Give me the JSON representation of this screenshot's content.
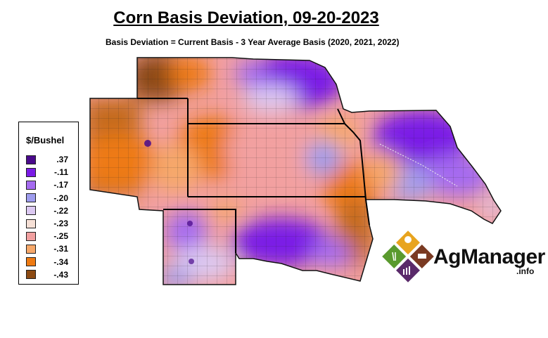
{
  "title": "Corn Basis Deviation, 09-20-2023",
  "subtitle": "Basis Deviation = Current Basis - 3 Year Average Basis (2020, 2021, 2022)",
  "legend": {
    "title": "$/Bushel",
    "items": [
      {
        "label": ".37",
        "color": "#4a0a8c"
      },
      {
        "label": "-.11",
        "color": "#7a1ae6"
      },
      {
        "label": "-.17",
        "color": "#a56bf0"
      },
      {
        "label": "-.20",
        "color": "#9e9cee"
      },
      {
        "label": "-.22",
        "color": "#dcc9f2"
      },
      {
        "label": "-.23",
        "color": "#f6e0d6"
      },
      {
        "label": "-.25",
        "color": "#f2a0a0"
      },
      {
        "label": "-.31",
        "color": "#f6a86a"
      },
      {
        "label": "-.34",
        "color": "#ee7a12"
      },
      {
        "label": "-.43",
        "color": "#8c4a12"
      }
    ]
  },
  "logo": {
    "text": "AgManager",
    "suffix": ".info"
  }
}
